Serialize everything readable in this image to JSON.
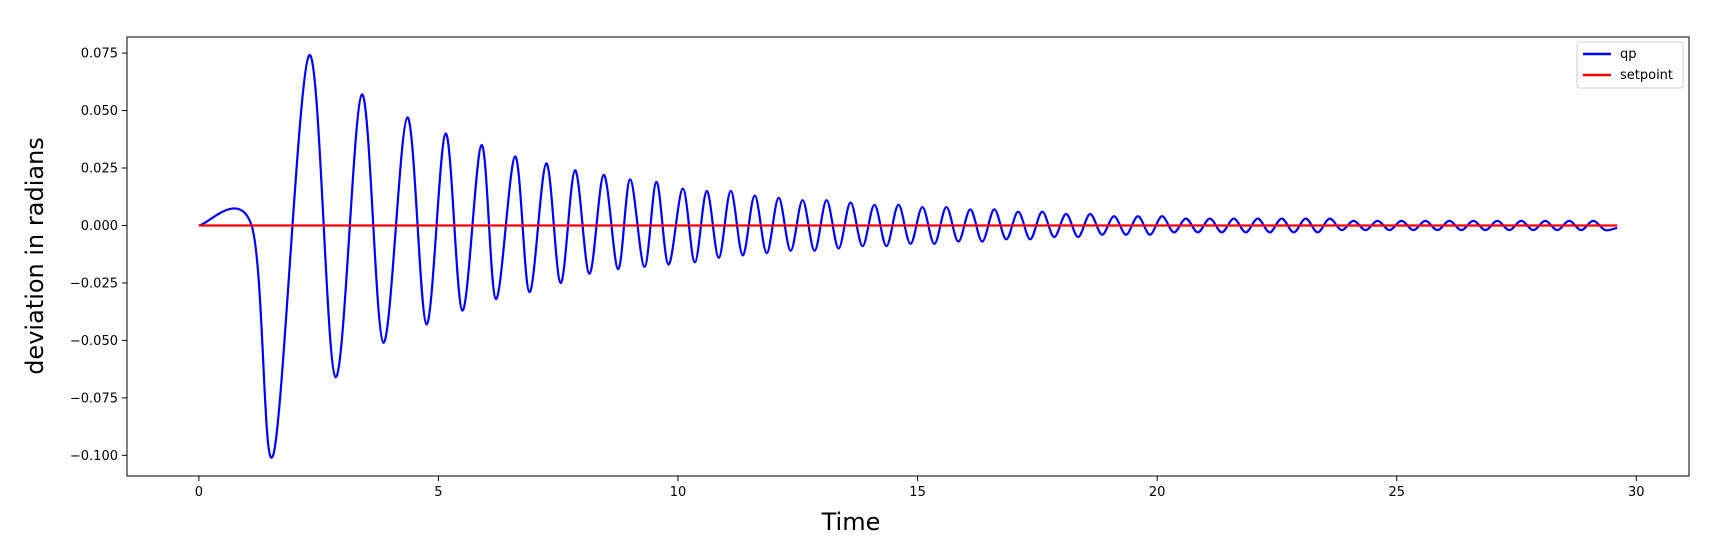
{
  "chart_data": {
    "type": "line",
    "xlabel": "Time",
    "ylabel": "deviation in radians",
    "xlim": [
      -1.5,
      31.1
    ],
    "ylim": [
      -0.109,
      0.082
    ],
    "x_ticks": [
      0,
      5,
      10,
      15,
      20,
      25,
      30
    ],
    "x_tick_labels": [
      "0",
      "5",
      "10",
      "15",
      "20",
      "25",
      "30"
    ],
    "y_ticks": [
      -0.1,
      -0.075,
      -0.05,
      -0.025,
      0.0,
      0.025,
      0.05,
      0.075
    ],
    "y_tick_labels": [
      "−0.100",
      "−0.075",
      "−0.050",
      "−0.025",
      "0.000",
      "0.025",
      "0.050",
      "0.075"
    ],
    "grid": false,
    "legend_position": "top-right",
    "series": [
      {
        "name": "qp",
        "color": "#0000ff",
        "x": [
          0,
          1.1,
          1.55,
          2.3,
          2.85,
          3.4,
          3.85,
          4.35,
          4.75,
          5.15,
          5.5,
          5.9,
          6.2,
          6.6,
          6.9,
          7.25,
          7.55,
          7.85,
          8.15,
          8.45,
          8.75,
          9.0,
          9.3,
          9.55,
          9.8,
          10.1,
          10.35,
          10.6,
          10.85,
          11.1,
          11.35,
          11.6,
          11.85,
          12.1,
          12.35,
          12.6,
          12.85,
          13.1,
          13.35,
          13.6,
          13.85,
          14.1,
          14.35,
          14.6,
          14.85,
          15.1,
          15.35,
          15.6,
          15.85,
          16.1,
          16.35,
          16.6,
          16.85,
          17.1,
          17.35,
          17.6,
          17.85,
          18.1,
          18.35,
          18.6,
          18.85,
          19.1,
          19.35,
          19.6,
          19.85,
          20.1,
          20.35,
          20.6,
          20.85,
          21.1,
          21.35,
          21.6,
          21.85,
          22.1,
          22.35,
          22.6,
          22.85,
          23.1,
          23.35,
          23.6,
          23.85,
          24.1,
          24.35,
          24.6,
          24.85,
          25.1,
          25.35,
          25.6,
          25.85,
          26.1,
          26.35,
          26.6,
          26.85,
          27.1,
          27.35,
          27.6,
          27.85,
          28.1,
          28.35,
          28.6,
          28.85,
          29.1,
          29.35,
          29.6
        ],
        "y": [
          0,
          0,
          -0.1,
          0.074,
          -0.066,
          0.057,
          -0.051,
          0.047,
          -0.043,
          0.04,
          -0.037,
          0.035,
          -0.032,
          0.03,
          -0.029,
          0.027,
          -0.025,
          0.024,
          -0.021,
          0.022,
          -0.019,
          0.02,
          -0.018,
          0.019,
          -0.017,
          0.016,
          -0.016,
          0.015,
          -0.014,
          0.015,
          -0.013,
          0.013,
          -0.012,
          0.012,
          -0.011,
          0.011,
          -0.011,
          0.011,
          -0.01,
          0.01,
          -0.009,
          0.009,
          -0.009,
          0.009,
          -0.008,
          0.008,
          -0.008,
          0.008,
          -0.007,
          0.007,
          -0.007,
          0.007,
          -0.006,
          0.006,
          -0.006,
          0.006,
          -0.005,
          0.005,
          -0.005,
          0.005,
          -0.004,
          0.004,
          -0.004,
          0.004,
          -0.004,
          0.004,
          -0.003,
          0.003,
          -0.003,
          0.003,
          -0.003,
          0.003,
          -0.003,
          0.003,
          -0.003,
          0.003,
          -0.003,
          0.003,
          -0.003,
          0.003,
          -0.002,
          0.002,
          -0.002,
          0.002,
          -0.002,
          0.002,
          -0.002,
          0.002,
          -0.002,
          0.002,
          -0.002,
          0.002,
          -0.002,
          0.002,
          -0.002,
          0.002,
          -0.002,
          0.002,
          -0.002,
          0.002,
          -0.002,
          0.002,
          -0.002,
          -0.001
        ]
      },
      {
        "name": "setpoint",
        "color": "#ff0000",
        "x": [
          0,
          29.6
        ],
        "y": [
          0,
          0
        ]
      }
    ]
  }
}
